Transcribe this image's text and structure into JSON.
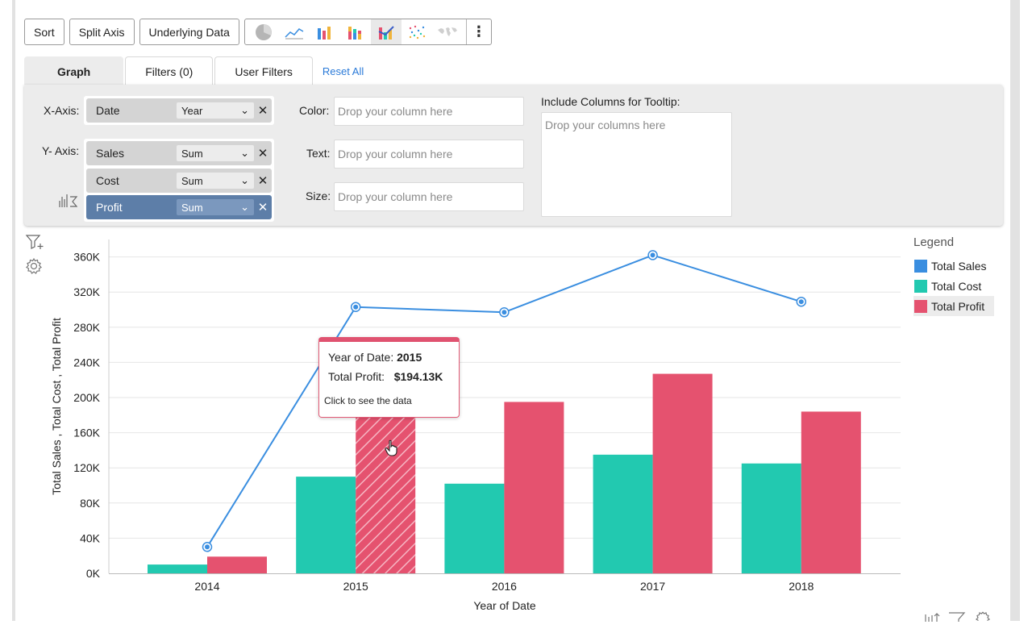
{
  "toolbar": {
    "sort_label": "Sort",
    "split_axis_label": "Split Axis",
    "underlying_data_label": "Underlying Data",
    "chart_types": [
      "pie-chart-icon",
      "line-chart-icon",
      "bar-chart-icon",
      "stacked-bar-chart-icon",
      "combo-chart-icon",
      "scatter-chart-icon",
      "map-chart-icon"
    ],
    "active_chart_type": "combo-chart-icon"
  },
  "tabs": {
    "graph": "Graph",
    "filters": "Filters (0)",
    "user_filters": "User Filters",
    "reset_all": "Reset All"
  },
  "shelf": {
    "x_axis_label": "X-Axis:",
    "y_axis_label": "Y- Axis:",
    "x_field": {
      "name": "Date",
      "agg": "Year"
    },
    "y_fields": [
      {
        "name": "Sales",
        "agg": "Sum"
      },
      {
        "name": "Cost",
        "agg": "Sum"
      },
      {
        "name": "Profit",
        "agg": "Sum"
      }
    ],
    "color_label": "Color:",
    "text_label": "Text:",
    "size_label": "Size:",
    "drop_column_placeholder": "Drop your column here",
    "tooltip_label": "Include Columns for Tooltip:",
    "tooltip_placeholder": "Drop your columns here"
  },
  "tooltip": {
    "year_label": "Year of Date:",
    "year_value": "2015",
    "profit_label": "Total Profit:",
    "profit_value": "$194.13K",
    "hint": "Click to see the data"
  },
  "legend": {
    "title": "Legend",
    "items": [
      {
        "name": "Total Sales",
        "color": "#3a8ee0"
      },
      {
        "name": "Total Cost",
        "color": "#22c9b0"
      },
      {
        "name": "Total Profit",
        "color": "#e5526f"
      }
    ]
  },
  "chart_data": {
    "type": "bar",
    "categories": [
      "2014",
      "2015",
      "2016",
      "2017",
      "2018"
    ],
    "series": [
      {
        "name": "Total Sales",
        "type": "line",
        "color": "#3a8ee0",
        "values": [
          30000,
          303000,
          297000,
          362000,
          309000
        ]
      },
      {
        "name": "Total Cost",
        "type": "bar",
        "color": "#22c9b0",
        "values": [
          10000,
          110000,
          102000,
          135000,
          125000
        ]
      },
      {
        "name": "Total Profit",
        "type": "bar",
        "color": "#e5526f",
        "values": [
          19000,
          194130,
          195000,
          227000,
          184000
        ]
      }
    ],
    "highlighted": {
      "series": "Total Profit",
      "category": "2015"
    },
    "xlabel": "Year of Date",
    "ylabel": "Total Sales , Total Cost , Total Profit",
    "ylim": [
      0,
      380000
    ],
    "yticks": [
      "0K",
      "40K",
      "80K",
      "120K",
      "160K",
      "200K",
      "240K",
      "280K",
      "320K",
      "360K"
    ],
    "grid": true,
    "legend_position": "right"
  }
}
